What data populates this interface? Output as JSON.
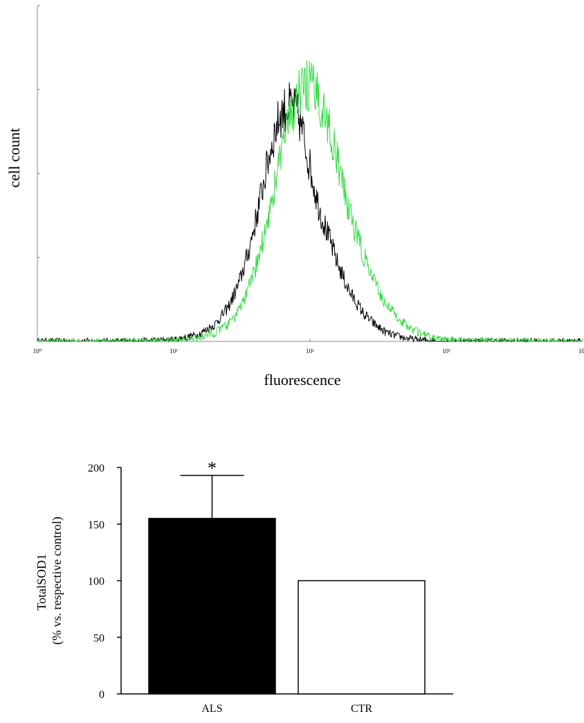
{
  "chart_data": [
    {
      "type": "line",
      "title": "",
      "xlabel": "fluorescence",
      "ylabel": "cell count",
      "x_scale": "log",
      "xlim": [
        1,
        10000
      ],
      "ylim": [
        0,
        1
      ],
      "x_tick_labels": [
        "10⁰",
        "10¹",
        "10²",
        "10³",
        "10⁴"
      ],
      "grid": false,
      "series": [
        {
          "color": "#000000",
          "x": [
            1,
            5,
            10,
            15,
            20,
            25,
            30,
            35,
            40,
            45,
            50,
            55,
            60,
            65,
            70,
            75,
            80,
            85,
            90,
            95,
            100,
            110,
            120,
            140,
            160,
            180,
            200,
            250,
            300,
            350,
            400,
            500,
            600,
            800,
            1000,
            10000
          ],
          "y": [
            0,
            0,
            0.005,
            0.02,
            0.05,
            0.1,
            0.17,
            0.26,
            0.36,
            0.46,
            0.55,
            0.62,
            0.67,
            0.69,
            0.7,
            0.7,
            0.68,
            0.65,
            0.61,
            0.56,
            0.52,
            0.44,
            0.38,
            0.3,
            0.23,
            0.18,
            0.14,
            0.08,
            0.05,
            0.03,
            0.02,
            0.01,
            0.005,
            0.002,
            0,
            0
          ]
        },
        {
          "color": "#33dd44",
          "x": [
            1,
            5,
            10,
            15,
            20,
            25,
            30,
            35,
            40,
            45,
            50,
            55,
            60,
            65,
            70,
            75,
            80,
            85,
            90,
            95,
            100,
            110,
            120,
            140,
            160,
            180,
            200,
            250,
            300,
            350,
            400,
            500,
            600,
            800,
            1000,
            10000
          ],
          "y": [
            0,
            0,
            0.002,
            0.01,
            0.025,
            0.05,
            0.09,
            0.15,
            0.22,
            0.3,
            0.38,
            0.46,
            0.54,
            0.6,
            0.65,
            0.69,
            0.72,
            0.74,
            0.75,
            0.76,
            0.76,
            0.74,
            0.71,
            0.63,
            0.53,
            0.44,
            0.37,
            0.25,
            0.17,
            0.12,
            0.09,
            0.05,
            0.03,
            0.01,
            0.004,
            0
          ]
        }
      ]
    },
    {
      "type": "bar",
      "title": "",
      "xlabel": "",
      "ylabel": "TotalSOD1\n(% vs. respective control)",
      "ylabel_lines": [
        "TotalSOD1",
        "(% vs. respective control)"
      ],
      "categories": [
        "ALS",
        "CTR"
      ],
      "values": [
        155,
        100
      ],
      "errors": [
        38,
        0
      ],
      "bar_colors": [
        "#000000",
        "#ffffff"
      ],
      "ylim": [
        0,
        200
      ],
      "y_ticks": [
        0,
        50,
        100,
        150,
        200
      ],
      "annotations": [
        "*"
      ],
      "grid": false
    }
  ]
}
